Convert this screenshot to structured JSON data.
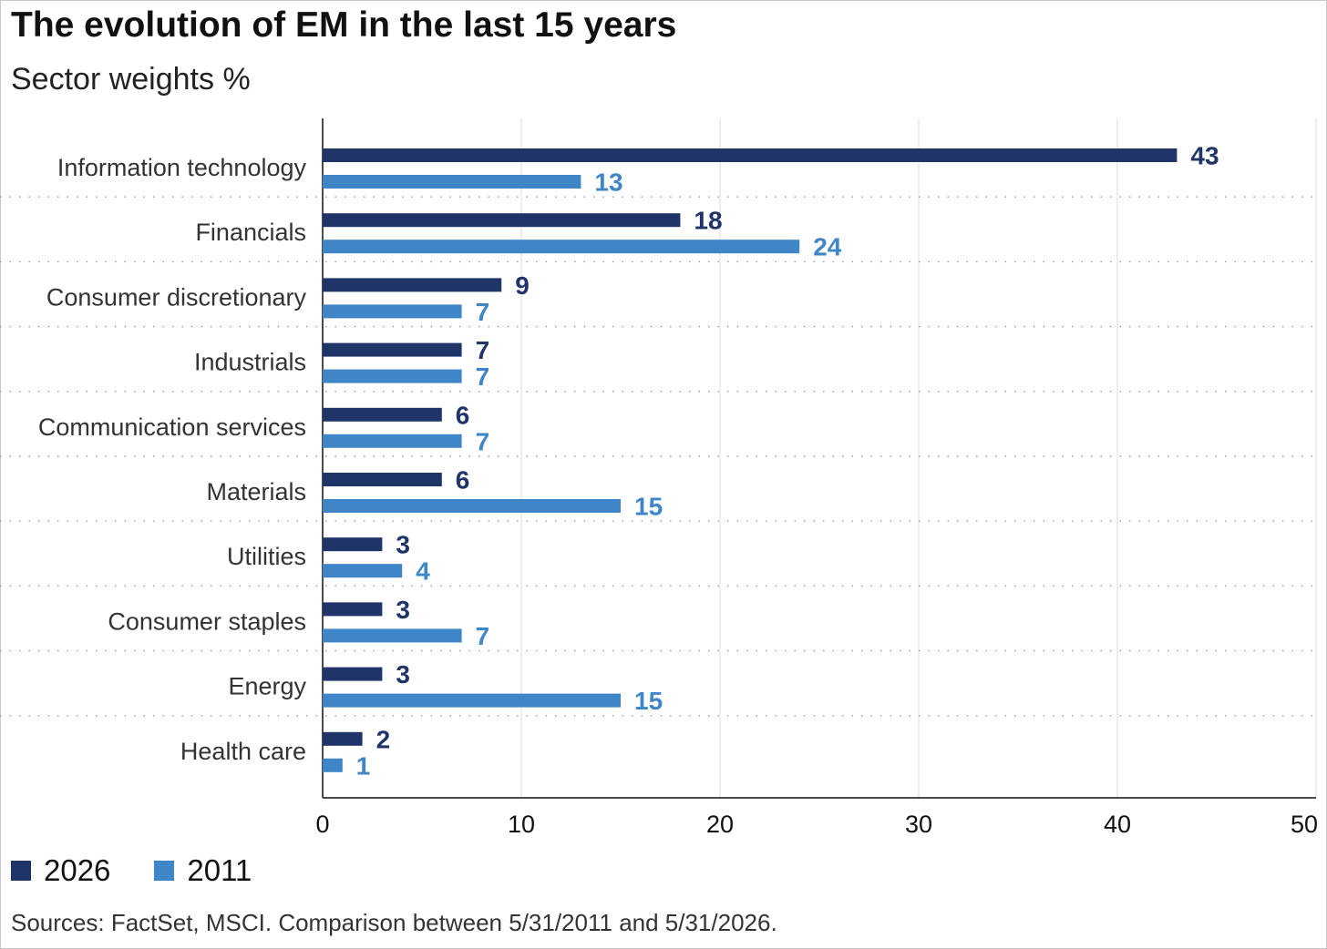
{
  "chart_data": {
    "type": "bar",
    "orientation": "horizontal",
    "title": "The evolution of EM in the last 15 years",
    "subtitle": "Sector weights %",
    "categories": [
      "Information technology",
      "Financials",
      "Consumer discretionary",
      "Industrials",
      "Communication services",
      "Materials",
      "Utilities",
      "Consumer staples",
      "Energy",
      "Health care"
    ],
    "series": [
      {
        "name": "2026",
        "color": "#1f3468",
        "values": [
          43,
          18,
          9,
          7,
          6,
          6,
          3,
          3,
          3,
          2
        ]
      },
      {
        "name": "2011",
        "color": "#3f86c8",
        "values": [
          13,
          24,
          7,
          7,
          7,
          15,
          4,
          7,
          15,
          1
        ]
      }
    ],
    "xlim": [
      0,
      50
    ],
    "xticks": [
      0,
      10,
      20,
      30,
      40,
      50
    ],
    "grid": true,
    "legend_position": "bottom-left",
    "source": "Sources: FactSet, MSCI. Comparison between 5/31/2011 and 5/31/2026."
  }
}
